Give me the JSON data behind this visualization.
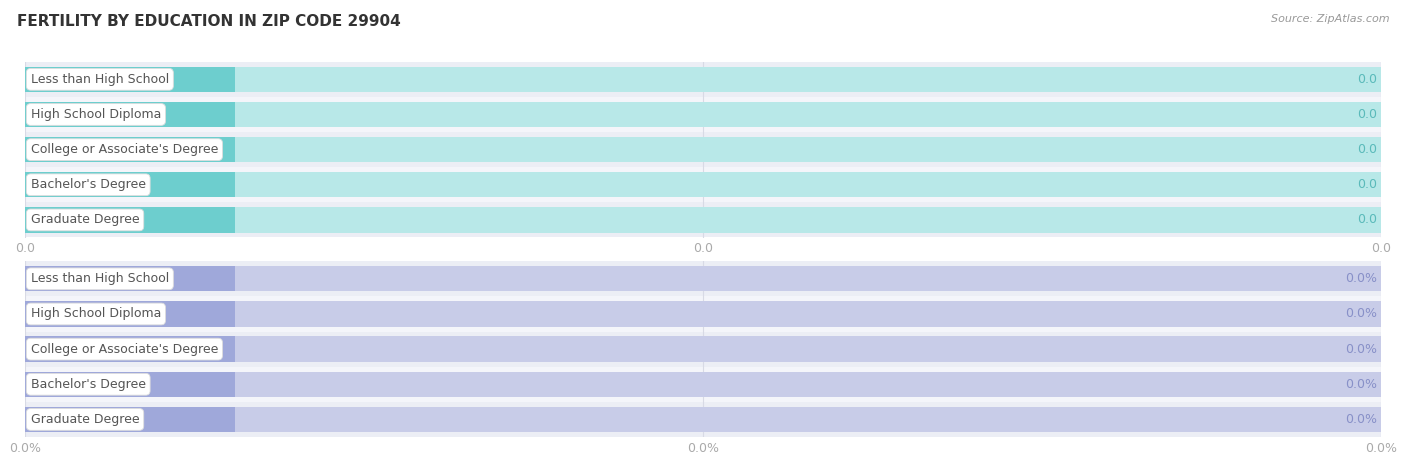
{
  "title": "FERTILITY BY EDUCATION IN ZIP CODE 29904",
  "source": "Source: ZipAtlas.com",
  "categories": [
    "Less than High School",
    "High School Diploma",
    "College or Associate's Degree",
    "Bachelor's Degree",
    "Graduate Degree"
  ],
  "values_top": [
    0.0,
    0.0,
    0.0,
    0.0,
    0.0
  ],
  "values_bottom": [
    0.0,
    0.0,
    0.0,
    0.0,
    0.0
  ],
  "labels_top": [
    "0.0",
    "0.0",
    "0.0",
    "0.0",
    "0.0"
  ],
  "labels_bottom": [
    "0.0%",
    "0.0%",
    "0.0%",
    "0.0%",
    "0.0%"
  ],
  "bar_color_top": "#6DCECE",
  "bar_color_bottom": "#9FA8DA",
  "bar_bg_color_top": "#B8E8E8",
  "bar_bg_color_bottom": "#C8CCE8",
  "row_bg_even": "#ECEEF5",
  "row_bg_odd": "#F4F5FA",
  "val_color_top": "#5ABABA",
  "val_color_bottom": "#8890C8",
  "text_color_cat": "#555555",
  "text_color_title": "#333333",
  "text_color_source": "#999999",
  "xtick_labels_top": [
    "0.0",
    "0.0",
    "0.0"
  ],
  "xtick_labels_bottom": [
    "0.0%",
    "0.0%",
    "0.0%"
  ],
  "title_fontsize": 11,
  "source_fontsize": 8,
  "bar_label_fontsize": 9,
  "category_fontsize": 9,
  "tick_fontsize": 9,
  "background_color": "#FFFFFF",
  "bar_height": 0.72,
  "pill_facecolor": "#FFFFFF",
  "pill_edgecolor": "#DDDDDD"
}
